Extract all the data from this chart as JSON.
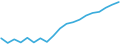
{
  "values": [
    11.3,
    10.4,
    11.1,
    10.5,
    11.4,
    10.5,
    11.3,
    10.6,
    11.8,
    13.2,
    14.1,
    14.4,
    14.9,
    15.7,
    16.2,
    16.4,
    17.2,
    17.8,
    18.3
  ],
  "line_color": "#3aacdc",
  "background_color": "#ffffff",
  "linewidth": 1.2
}
